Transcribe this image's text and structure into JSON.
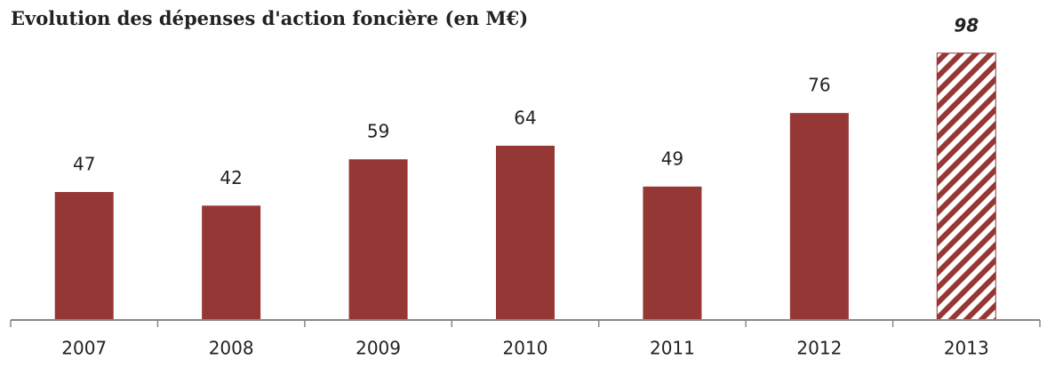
{
  "chart_data": {
    "type": "bar",
    "title": "Evolution des dépenses d'action foncière (en M€)",
    "categories": [
      "2007",
      "2008",
      "2009",
      "2010",
      "2011",
      "2012",
      "2013"
    ],
    "values": [
      47,
      42,
      59,
      64,
      49,
      76,
      98
    ],
    "styles": [
      "solid",
      "solid",
      "solid",
      "solid",
      "solid",
      "solid",
      "hatched"
    ],
    "color": "#953735",
    "ylim": [
      0,
      110
    ]
  }
}
